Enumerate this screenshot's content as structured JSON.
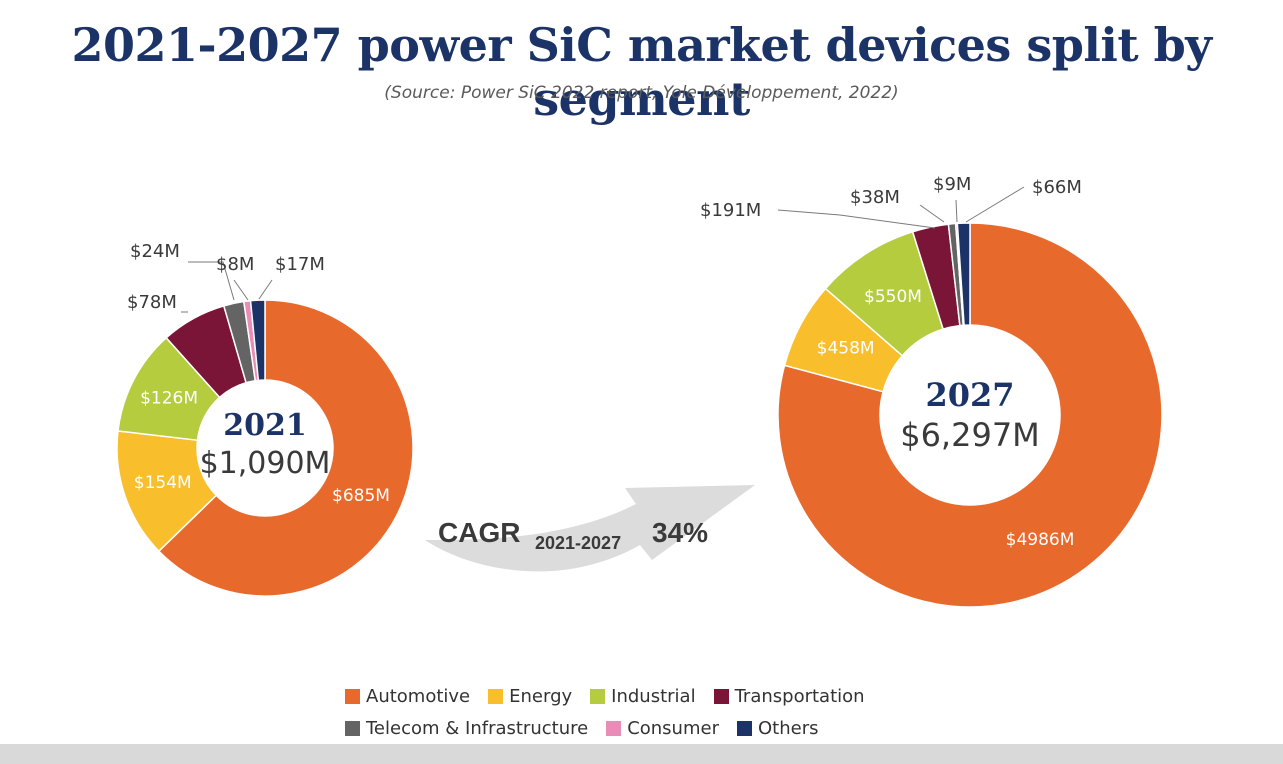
{
  "page": {
    "title": "2021-2027 power SiC market devices split by segment",
    "subtitle": "(Source: Power SiC 2022 report, Yole Développement, 2022)"
  },
  "cagr": {
    "label": "CAGR",
    "range": "2021-2027",
    "value": "34%"
  },
  "chart_data": [
    {
      "type": "pie",
      "variant": "donut",
      "center_year": "2021",
      "center_total": "$1,090M",
      "slices": [
        {
          "name": "Automotive",
          "value": 685,
          "label": "$685M",
          "color": "#e8692c",
          "label_pos": "inside"
        },
        {
          "name": "Energy",
          "value": 154,
          "label": "$154M",
          "color": "#f8be2c",
          "label_pos": "inside"
        },
        {
          "name": "Industrial",
          "value": 126,
          "label": "$126M",
          "color": "#b4cc3e",
          "label_pos": "inside"
        },
        {
          "name": "Transportation",
          "value": 78,
          "label": "$78M",
          "color": "#7b1538",
          "label_pos": "outside"
        },
        {
          "name": "Telecom & Infrastructure",
          "value": 24,
          "label": "$24M",
          "color": "#646464",
          "label_pos": "outside"
        },
        {
          "name": "Consumer",
          "value": 8,
          "label": "$8M",
          "color": "#e98cb8",
          "label_pos": "outside"
        },
        {
          "name": "Others",
          "value": 17,
          "label": "$17M",
          "color": "#1b3366",
          "label_pos": "outside"
        }
      ]
    },
    {
      "type": "pie",
      "variant": "donut",
      "center_year": "2027",
      "center_total": "$6,297M",
      "slices": [
        {
          "name": "Automotive",
          "value": 4986,
          "label": "$4986M",
          "color": "#e8692c",
          "label_pos": "inside"
        },
        {
          "name": "Energy",
          "value": 458,
          "label": "$458M",
          "color": "#f8be2c",
          "label_pos": "inside"
        },
        {
          "name": "Industrial",
          "value": 550,
          "label": "$550M",
          "color": "#b4cc3e",
          "label_pos": "inside"
        },
        {
          "name": "Transportation",
          "value": 191,
          "label": "$191M",
          "color": "#7b1538",
          "label_pos": "outside"
        },
        {
          "name": "Telecom & Infrastructure",
          "value": 38,
          "label": "$38M",
          "color": "#646464",
          "label_pos": "outside"
        },
        {
          "name": "Consumer",
          "value": 9,
          "label": "$9M",
          "color": "#e98cb8",
          "label_pos": "outside"
        },
        {
          "name": "Others",
          "value": 66,
          "label": "$66M",
          "color": "#1b3366",
          "label_pos": "outside"
        }
      ]
    }
  ],
  "legend": {
    "rows": [
      [
        {
          "name": "Automotive",
          "color": "#e8692c"
        },
        {
          "name": "Energy",
          "color": "#f8be2c"
        },
        {
          "name": "Industrial",
          "color": "#b4cc3e"
        },
        {
          "name": "Transportation",
          "color": "#7b1538"
        }
      ],
      [
        {
          "name": "Telecom & Infrastructure",
          "color": "#646464"
        },
        {
          "name": "Consumer",
          "color": "#e98cb8"
        },
        {
          "name": "Others",
          "color": "#1b3366"
        }
      ]
    ]
  }
}
